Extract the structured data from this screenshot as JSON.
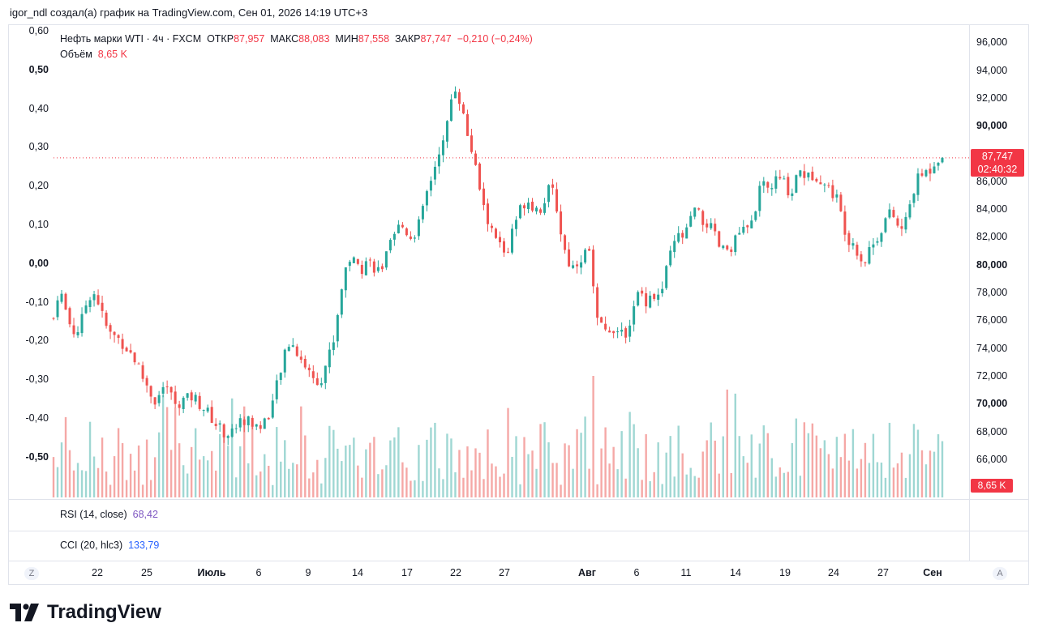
{
  "caption": "igor_ndl создал(а) график на TradingView.com, Сен 01, 2026 14:19 UTC+3",
  "legend": {
    "symbol": "Нефть марки WTI · 4ч · FXCM",
    "open_label": "ОТКР",
    "open": "87,957",
    "high_label": "МАКС",
    "high": "88,083",
    "low_label": "МИН",
    "low": "87,558",
    "close_label": "ЗАКР",
    "close": "87,747",
    "change": "−0,210 (−0,24%)",
    "volume_label": "Объём",
    "volume": "8,65 K"
  },
  "price_badge": {
    "price": "87,747",
    "countdown": "02:40:32"
  },
  "volume_badge": "8,65 K",
  "indicators": {
    "rsi_label": "RSI (14, close)",
    "rsi_value": "68,42",
    "cci_label": "CCI (20, hlc3)",
    "cci_value": "133,79"
  },
  "controls": {
    "left": "Z",
    "right": "A"
  },
  "brand": "TradingView",
  "colors": {
    "up": "#26a69a",
    "down": "#ef5350",
    "up_vol": "#9fd7d3",
    "down_vol": "#f5a8a6",
    "price_line": "#f23645"
  },
  "chart_data": {
    "type": "candlestick",
    "timeframe": "4h",
    "right_axis": {
      "ticks": [
        "96,000",
        "94,000",
        "92,000",
        "90,000",
        "88,000",
        "86,000",
        "84,000",
        "82,000",
        "80,000",
        "78,000",
        "76,000",
        "74,000",
        "72,000",
        "70,000",
        "68,000",
        "66,000"
      ],
      "bold": [
        "90,000",
        "80,000",
        "70,000"
      ],
      "ylim": [
        65,
        96.6
      ]
    },
    "left_axis": {
      "ticks": [
        "0,60",
        "0,50",
        "0,40",
        "0,30",
        "0,20",
        "0,10",
        "0,00",
        "-0,10",
        "-0,20",
        "-0,30",
        "-0,40",
        "-0,50"
      ],
      "bold": [
        "0,50",
        "0,00",
        "-0,50"
      ]
    },
    "x_axis": {
      "labels": [
        "22",
        "25",
        "Июль",
        "6",
        "9",
        "14",
        "17",
        "22",
        "27",
        "Авг",
        "6",
        "11",
        "14",
        "19",
        "24",
        "27",
        "Сен"
      ],
      "bold": [
        "Июль",
        "Авг",
        "Сен"
      ]
    },
    "last_price": 87.747,
    "price_path": [
      [
        0,
        76.2
      ],
      [
        3,
        78.5
      ],
      [
        6,
        77.0
      ],
      [
        9,
        75.7
      ],
      [
        12,
        75.0
      ],
      [
        15,
        76.0
      ],
      [
        18,
        77.5
      ],
      [
        21,
        78.2
      ],
      [
        24,
        77.4
      ],
      [
        27,
        76.0
      ],
      [
        30,
        75.1
      ],
      [
        33,
        74.9
      ],
      [
        36,
        74.6
      ],
      [
        39,
        74.1
      ],
      [
        42,
        73.6
      ],
      [
        45,
        72.9
      ],
      [
        48,
        71.9
      ],
      [
        51,
        71.2
      ],
      [
        54,
        70.2
      ],
      [
        57,
        70.7
      ],
      [
        60,
        71.6
      ],
      [
        63,
        70.6
      ],
      [
        66,
        70.0
      ],
      [
        69,
        70.3
      ],
      [
        72,
        70.4
      ],
      [
        75,
        70.6
      ],
      [
        78,
        70.1
      ],
      [
        81,
        69.7
      ],
      [
        84,
        69.2
      ],
      [
        87,
        68.6
      ],
      [
        90,
        68.2
      ],
      [
        93,
        67.8
      ],
      [
        96,
        68.1
      ],
      [
        99,
        68.6
      ],
      [
        102,
        68.9
      ],
      [
        105,
        68.8
      ],
      [
        108,
        68.5
      ],
      [
        111,
        68.4
      ],
      [
        114,
        69.0
      ],
      [
        117,
        69.8
      ],
      [
        120,
        71.4
      ],
      [
        123,
        73.0
      ],
      [
        126,
        74.4
      ],
      [
        129,
        74.2
      ],
      [
        132,
        73.5
      ],
      [
        135,
        72.8
      ],
      [
        138,
        72.2
      ],
      [
        141,
        71.7
      ],
      [
        144,
        72.0
      ],
      [
        147,
        73.3
      ],
      [
        150,
        74.4
      ],
      [
        153,
        77.0
      ],
      [
        156,
        79.6
      ],
      [
        159,
        80.5
      ],
      [
        162,
        80.2
      ],
      [
        165,
        79.7
      ],
      [
        168,
        80.4
      ],
      [
        171,
        80.1
      ],
      [
        174,
        79.6
      ],
      [
        177,
        80.0
      ],
      [
        180,
        81.2
      ],
      [
        183,
        82.0
      ],
      [
        186,
        83.0
      ],
      [
        189,
        82.5
      ],
      [
        192,
        82.0
      ],
      [
        195,
        82.6
      ],
      [
        198,
        83.8
      ],
      [
        201,
        85.6
      ],
      [
        204,
        86.8
      ],
      [
        207,
        88.4
      ],
      [
        210,
        88.9
      ],
      [
        213,
        91.8
      ],
      [
        216,
        93.0
      ],
      [
        219,
        91.3
      ],
      [
        222,
        89.5
      ],
      [
        225,
        87.9
      ],
      [
        228,
        86.0
      ],
      [
        231,
        84.0
      ],
      [
        234,
        82.8
      ],
      [
        237,
        82.0
      ],
      [
        240,
        81.4
      ],
      [
        243,
        80.6
      ],
      [
        246,
        82.3
      ],
      [
        249,
        83.6
      ],
      [
        252,
        84.5
      ],
      [
        255,
        84.7
      ],
      [
        258,
        84.2
      ],
      [
        261,
        84.0
      ],
      [
        264,
        84.9
      ],
      [
        267,
        85.7
      ],
      [
        270,
        84.2
      ],
      [
        273,
        81.8
      ],
      [
        276,
        80.3
      ],
      [
        279,
        79.9
      ],
      [
        282,
        80.5
      ],
      [
        285,
        80.8
      ],
      [
        288,
        81.5
      ],
      [
        291,
        76.2
      ],
      [
        294,
        75.5
      ],
      [
        297,
        75.2
      ],
      [
        300,
        75.7
      ],
      [
        303,
        75.0
      ],
      [
        306,
        74.9
      ],
      [
        309,
        75.8
      ],
      [
        312,
        77.6
      ],
      [
        315,
        78.1
      ],
      [
        318,
        77.5
      ],
      [
        321,
        78.0
      ],
      [
        324,
        77.6
      ],
      [
        327,
        78.4
      ],
      [
        330,
        80.3
      ],
      [
        333,
        81.5
      ],
      [
        336,
        82.2
      ],
      [
        339,
        82.0
      ],
      [
        342,
        83.5
      ],
      [
        345,
        84.0
      ],
      [
        348,
        83.1
      ],
      [
        351,
        83.0
      ],
      [
        354,
        82.4
      ],
      [
        357,
        81.4
      ],
      [
        360,
        81.0
      ],
      [
        363,
        81.3
      ],
      [
        366,
        81.8
      ],
      [
        369,
        82.6
      ],
      [
        372,
        82.4
      ],
      [
        375,
        83.1
      ],
      [
        378,
        85.1
      ],
      [
        381,
        85.7
      ],
      [
        384,
        85.4
      ],
      [
        387,
        86.1
      ],
      [
        390,
        86.2
      ],
      [
        393,
        85.8
      ],
      [
        396,
        85.0
      ],
      [
        399,
        86.9
      ],
      [
        402,
        86.7
      ],
      [
        405,
        86.3
      ],
      [
        408,
        86.6
      ],
      [
        411,
        86.4
      ],
      [
        414,
        85.8
      ],
      [
        417,
        85.4
      ],
      [
        420,
        85.0
      ],
      [
        423,
        83.5
      ],
      [
        426,
        82.0
      ],
      [
        429,
        81.7
      ],
      [
        432,
        80.9
      ],
      [
        435,
        80.1
      ],
      [
        438,
        81.3
      ],
      [
        441,
        81.7
      ],
      [
        444,
        82.6
      ],
      [
        447,
        83.5
      ],
      [
        450,
        83.8
      ],
      [
        453,
        82.8
      ],
      [
        456,
        82.5
      ],
      [
        459,
        84.1
      ],
      [
        462,
        85.6
      ],
      [
        465,
        86.5
      ],
      [
        468,
        86.7
      ],
      [
        471,
        87.0
      ],
      [
        474,
        87.8
      ],
      [
        477,
        87.75
      ]
    ],
    "volume_scale": 100
  }
}
